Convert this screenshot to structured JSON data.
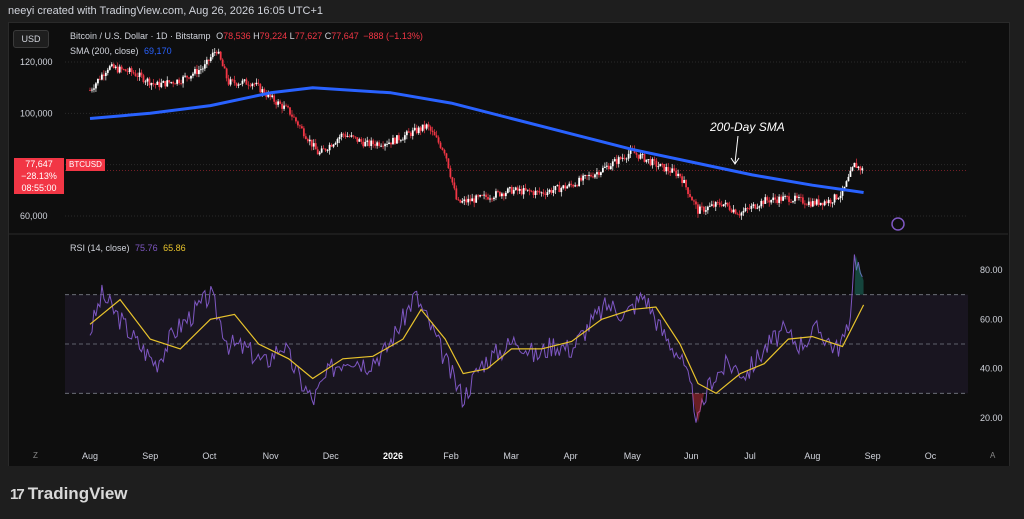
{
  "header": {
    "attribution": "neeyi created with TradingView.com, Aug 26, 2026 16:05 UTC+1"
  },
  "toolbar": {
    "currency_button": "USD"
  },
  "legend": {
    "symbol": "Bitcoin / U.S. Dollar · 1D · Bitstamp",
    "o_label": "O",
    "o_value": "78,536",
    "h_label": "H",
    "h_value": "79,224",
    "l_label": "L",
    "l_value": "77,627",
    "c_label": "C",
    "c_value": "77,647",
    "change": "−888 (−1.13%)",
    "sma_label": "SMA (200, close)",
    "sma_value": "69,170",
    "rsi_label": "RSI (14, close)",
    "rsi_value": "75.76",
    "rsi_ma_value": "65.86"
  },
  "price_tag": {
    "price": "77,647",
    "change_pct": "−28.13%",
    "countdown": "08:55:00",
    "ticker": "BTCUSD"
  },
  "annotation": {
    "text": "200-Day SMA"
  },
  "branding": {
    "logo_text": "TradingView",
    "logo_mark": "17"
  },
  "icons": {
    "zoom": "Z",
    "auto": "A"
  },
  "colors": {
    "up": "#ffffff",
    "down": "#f23645",
    "sma": "#2962ff",
    "rsi": "#7e57c2",
    "rsi_ma": "#e8c32c",
    "background": "#0e0e0e"
  },
  "chart_data": [
    {
      "type": "candlestick",
      "title": "Bitcoin / U.S. Dollar · 1D · Bitstamp",
      "ylabel": "",
      "y_ticks": [
        60000,
        80000,
        100000,
        120000
      ],
      "y_tick_labels": [
        "60,000",
        "80,000",
        "100,000",
        "120,000"
      ],
      "x_tick_labels": [
        "Aug",
        "Sep",
        "Oct",
        "Nov",
        "Dec",
        "2026",
        "Feb",
        "Mar",
        "Apr",
        "May",
        "Jun",
        "Jul",
        "Aug",
        "Sep",
        "Oc"
      ],
      "x_tick_months": [
        0,
        1,
        2,
        3,
        4,
        5,
        6,
        7,
        8,
        9,
        10,
        11,
        12,
        13,
        14
      ],
      "close_path": [
        {
          "m": 0.0,
          "v": 109000
        },
        {
          "m": 0.3,
          "v": 118000
        },
        {
          "m": 0.7,
          "v": 116000
        },
        {
          "m": 1.1,
          "v": 111000
        },
        {
          "m": 1.5,
          "v": 113000
        },
        {
          "m": 1.9,
          "v": 118000
        },
        {
          "m": 2.1,
          "v": 125000
        },
        {
          "m": 2.3,
          "v": 112000
        },
        {
          "m": 2.7,
          "v": 112000
        },
        {
          "m": 3.0,
          "v": 106000
        },
        {
          "m": 3.3,
          "v": 101000
        },
        {
          "m": 3.6,
          "v": 91000
        },
        {
          "m": 3.8,
          "v": 84000
        },
        {
          "m": 4.2,
          "v": 92000
        },
        {
          "m": 4.6,
          "v": 88000
        },
        {
          "m": 5.0,
          "v": 89000
        },
        {
          "m": 5.3,
          "v": 92000
        },
        {
          "m": 5.6,
          "v": 95000
        },
        {
          "m": 5.9,
          "v": 85000
        },
        {
          "m": 6.1,
          "v": 65000
        },
        {
          "m": 6.5,
          "v": 67000
        },
        {
          "m": 7.0,
          "v": 70000
        },
        {
          "m": 7.5,
          "v": 69000
        },
        {
          "m": 8.0,
          "v": 72000
        },
        {
          "m": 8.5,
          "v": 78000
        },
        {
          "m": 9.0,
          "v": 85000
        },
        {
          "m": 9.4,
          "v": 80000
        },
        {
          "m": 9.8,
          "v": 76000
        },
        {
          "m": 10.1,
          "v": 62000
        },
        {
          "m": 10.5,
          "v": 65000
        },
        {
          "m": 10.8,
          "v": 61000
        },
        {
          "m": 11.2,
          "v": 66000
        },
        {
          "m": 11.6,
          "v": 67000
        },
        {
          "m": 12.0,
          "v": 65000
        },
        {
          "m": 12.3,
          "v": 66000
        },
        {
          "m": 12.5,
          "v": 69000
        },
        {
          "m": 12.7,
          "v": 80000
        },
        {
          "m": 12.85,
          "v": 77647
        }
      ],
      "series": [
        {
          "name": "SMA (200, close)",
          "points": [
            {
              "m": 0.0,
              "v": 98000
            },
            {
              "m": 1.0,
              "v": 100000
            },
            {
              "m": 2.0,
              "v": 103000
            },
            {
              "m": 3.0,
              "v": 108000
            },
            {
              "m": 3.7,
              "v": 110000
            },
            {
              "m": 5.0,
              "v": 108000
            },
            {
              "m": 6.0,
              "v": 104000
            },
            {
              "m": 7.0,
              "v": 98000
            },
            {
              "m": 8.0,
              "v": 92000
            },
            {
              "m": 9.0,
              "v": 86000
            },
            {
              "m": 10.0,
              "v": 81000
            },
            {
              "m": 11.0,
              "v": 76000
            },
            {
              "m": 12.0,
              "v": 72000
            },
            {
              "m": 12.85,
              "v": 69170
            }
          ]
        }
      ],
      "last_value": 77647,
      "annotation": "200-Day SMA"
    },
    {
      "type": "line",
      "title": "RSI (14, close)",
      "ylim": [
        10,
        90
      ],
      "y_ticks": [
        20,
        40,
        60,
        80
      ],
      "y_tick_labels": [
        "20.00",
        "40.00",
        "60.00",
        "80.00"
      ],
      "bands": [
        30,
        50,
        70
      ],
      "series": [
        {
          "name": "RSI",
          "points": [
            {
              "m": 0.0,
              "v": 55
            },
            {
              "m": 0.2,
              "v": 70
            },
            {
              "m": 0.5,
              "v": 60
            },
            {
              "m": 0.8,
              "v": 50
            },
            {
              "m": 1.1,
              "v": 42
            },
            {
              "m": 1.4,
              "v": 55
            },
            {
              "m": 1.7,
              "v": 62
            },
            {
              "m": 2.0,
              "v": 70
            },
            {
              "m": 2.3,
              "v": 50
            },
            {
              "m": 2.6,
              "v": 48
            },
            {
              "m": 2.9,
              "v": 42
            },
            {
              "m": 3.2,
              "v": 50
            },
            {
              "m": 3.5,
              "v": 35
            },
            {
              "m": 3.7,
              "v": 27
            },
            {
              "m": 4.0,
              "v": 40
            },
            {
              "m": 4.3,
              "v": 45
            },
            {
              "m": 4.6,
              "v": 42
            },
            {
              "m": 4.9,
              "v": 47
            },
            {
              "m": 5.2,
              "v": 60
            },
            {
              "m": 5.4,
              "v": 70
            },
            {
              "m": 5.7,
              "v": 55
            },
            {
              "m": 6.0,
              "v": 38
            },
            {
              "m": 6.2,
              "v": 28
            },
            {
              "m": 6.5,
              "v": 42
            },
            {
              "m": 6.8,
              "v": 47
            },
            {
              "m": 7.1,
              "v": 52
            },
            {
              "m": 7.4,
              "v": 45
            },
            {
              "m": 7.7,
              "v": 50
            },
            {
              "m": 8.0,
              "v": 48
            },
            {
              "m": 8.3,
              "v": 58
            },
            {
              "m": 8.6,
              "v": 66
            },
            {
              "m": 8.9,
              "v": 62
            },
            {
              "m": 9.2,
              "v": 70
            },
            {
              "m": 9.5,
              "v": 55
            },
            {
              "m": 9.8,
              "v": 45
            },
            {
              "m": 10.0,
              "v": 30
            },
            {
              "m": 10.1,
              "v": 18
            },
            {
              "m": 10.3,
              "v": 35
            },
            {
              "m": 10.6,
              "v": 42
            },
            {
              "m": 10.9,
              "v": 38
            },
            {
              "m": 11.2,
              "v": 48
            },
            {
              "m": 11.5,
              "v": 55
            },
            {
              "m": 11.8,
              "v": 50
            },
            {
              "m": 12.1,
              "v": 56
            },
            {
              "m": 12.4,
              "v": 48
            },
            {
              "m": 12.6,
              "v": 55
            },
            {
              "m": 12.7,
              "v": 86
            },
            {
              "m": 12.85,
              "v": 75.76
            }
          ]
        },
        {
          "name": "RSI-based MA",
          "points": [
            {
              "m": 0.0,
              "v": 58
            },
            {
              "m": 0.5,
              "v": 68
            },
            {
              "m": 1.0,
              "v": 52
            },
            {
              "m": 1.5,
              "v": 48
            },
            {
              "m": 2.0,
              "v": 60
            },
            {
              "m": 2.4,
              "v": 62
            },
            {
              "m": 2.8,
              "v": 50
            },
            {
              "m": 3.3,
              "v": 44
            },
            {
              "m": 3.7,
              "v": 36
            },
            {
              "m": 4.2,
              "v": 44
            },
            {
              "m": 4.7,
              "v": 45
            },
            {
              "m": 5.2,
              "v": 52
            },
            {
              "m": 5.5,
              "v": 64
            },
            {
              "m": 5.9,
              "v": 52
            },
            {
              "m": 6.2,
              "v": 38
            },
            {
              "m": 6.6,
              "v": 40
            },
            {
              "m": 7.0,
              "v": 48
            },
            {
              "m": 7.5,
              "v": 48
            },
            {
              "m": 8.0,
              "v": 51
            },
            {
              "m": 8.5,
              "v": 60
            },
            {
              "m": 9.0,
              "v": 64
            },
            {
              "m": 9.4,
              "v": 65
            },
            {
              "m": 9.8,
              "v": 50
            },
            {
              "m": 10.1,
              "v": 34
            },
            {
              "m": 10.4,
              "v": 30
            },
            {
              "m": 10.8,
              "v": 38
            },
            {
              "m": 11.2,
              "v": 42
            },
            {
              "m": 11.6,
              "v": 52
            },
            {
              "m": 12.0,
              "v": 53
            },
            {
              "m": 12.5,
              "v": 49
            },
            {
              "m": 12.85,
              "v": 65.86
            }
          ]
        }
      ]
    }
  ]
}
